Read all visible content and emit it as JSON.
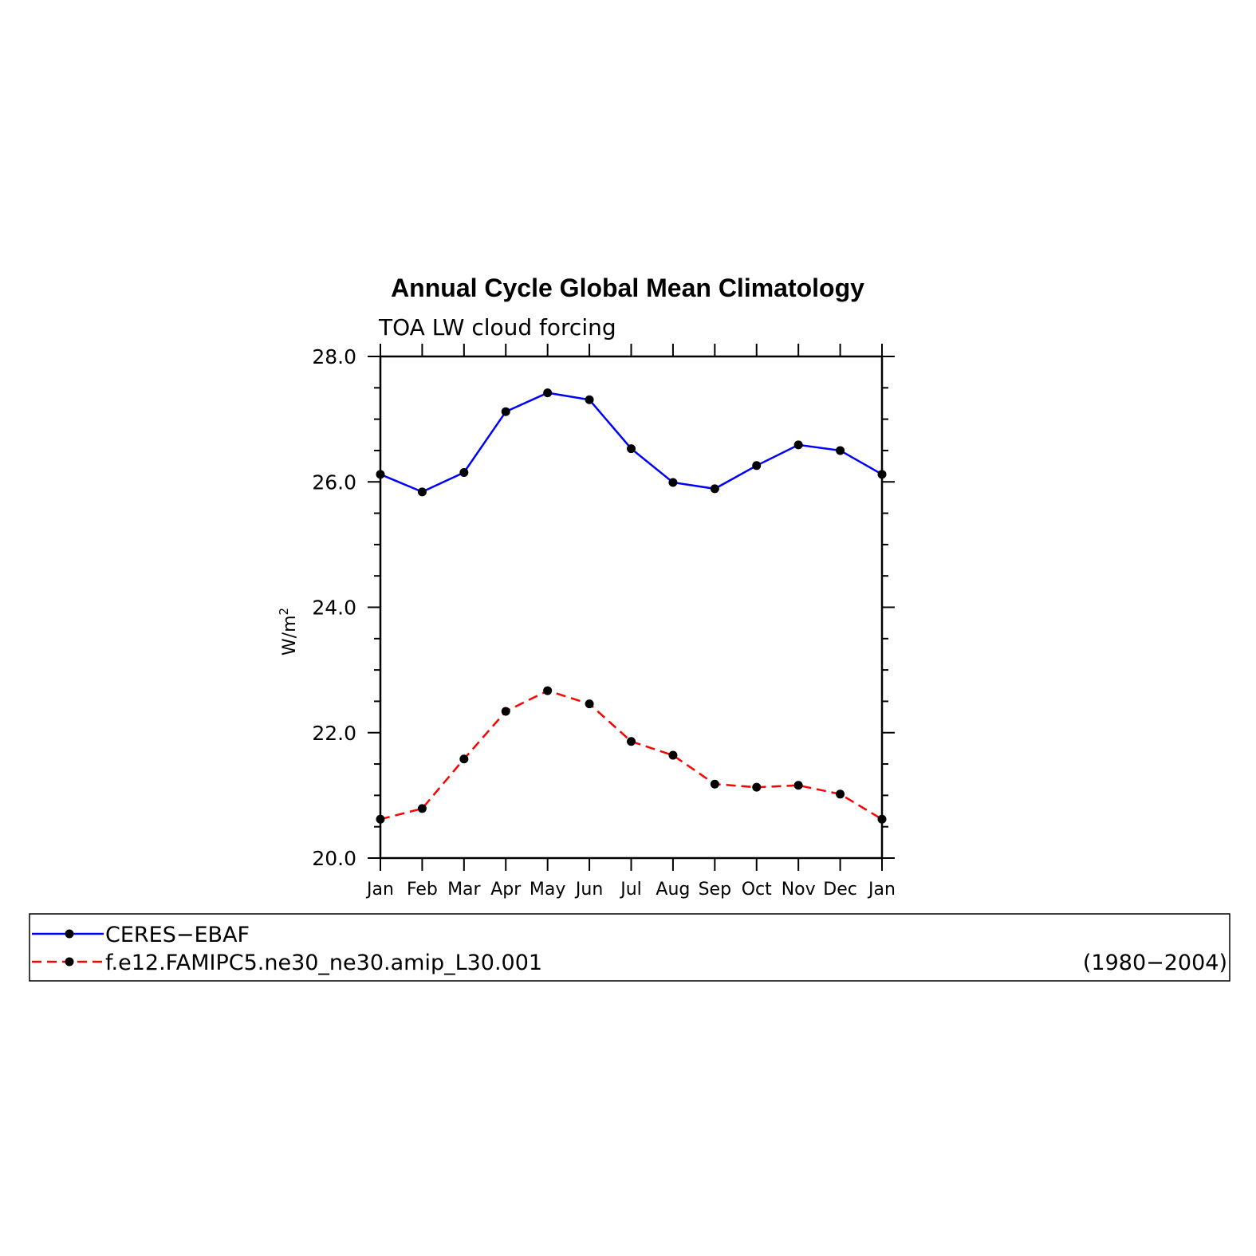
{
  "chart_data": {
    "type": "line",
    "title": "Annual Cycle Global Mean Climatology",
    "subtitle": "TOA LW cloud forcing",
    "ylabel": "W/m",
    "ylabel_superscript": "2",
    "ylim": [
      20.0,
      28.0
    ],
    "yticks": [
      "20.0",
      "22.0",
      "24.0",
      "26.0",
      "28.0"
    ],
    "categories": [
      "Jan",
      "Feb",
      "Mar",
      "Apr",
      "May",
      "Jun",
      "Jul",
      "Aug",
      "Sep",
      "Oct",
      "Nov",
      "Dec",
      "Jan"
    ],
    "series": [
      {
        "name": "CERES−EBAF",
        "color": "#0000ff",
        "dash": "solid",
        "values": [
          26.12,
          25.84,
          26.15,
          27.12,
          27.42,
          27.31,
          26.53,
          25.99,
          25.89,
          26.26,
          26.59,
          26.5,
          26.12
        ]
      },
      {
        "name": "f.e12.FAMIPC5.ne30_ne30.amip_L30.001",
        "color": "#ff0000",
        "dash": "dashed",
        "values": [
          20.62,
          20.79,
          21.58,
          22.34,
          22.67,
          22.46,
          21.86,
          21.64,
          21.18,
          21.13,
          21.16,
          21.02,
          20.62
        ]
      }
    ],
    "legend": {
      "placement": "bottom",
      "period": "(1980−2004)"
    }
  }
}
